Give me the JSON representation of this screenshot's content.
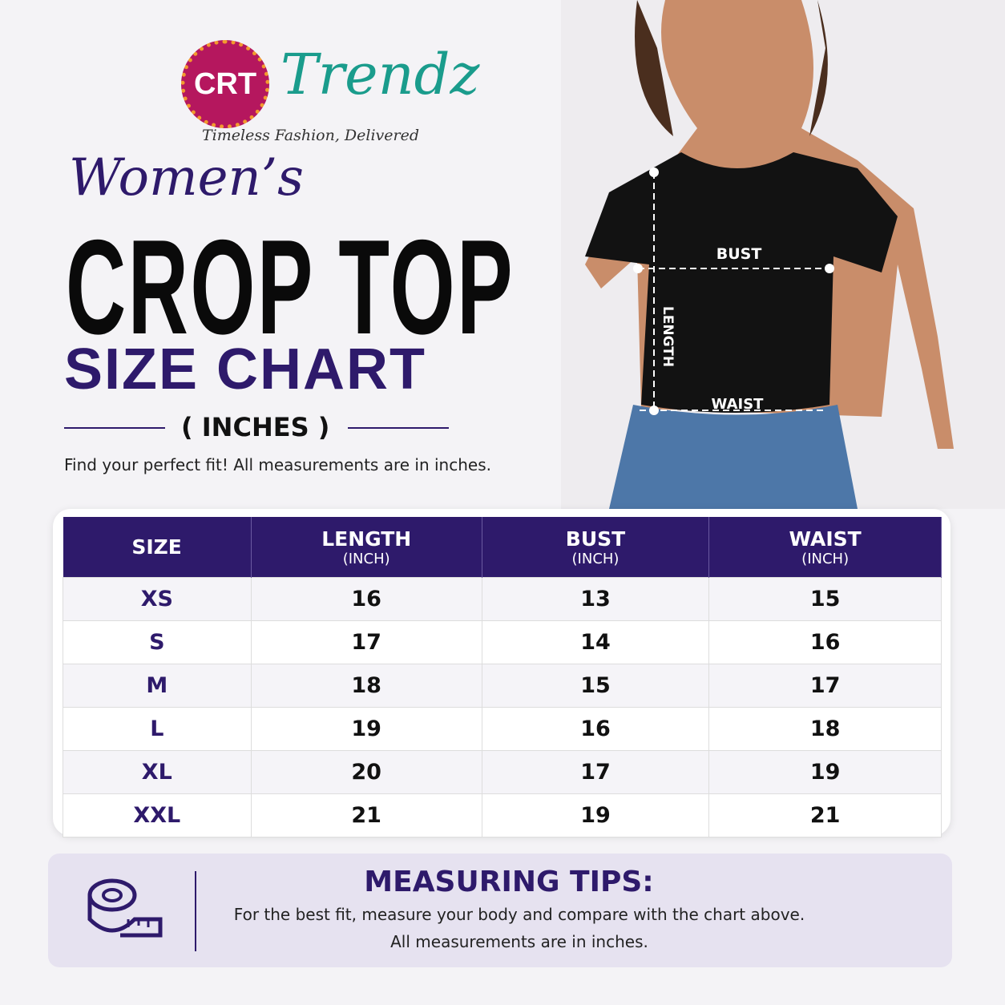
{
  "logo": {
    "badge": "CRT",
    "brand": "Trendz",
    "tagline": "Timeless Fashion, Delivered"
  },
  "heading": {
    "script": "Women’s",
    "title": "CROP TOP",
    "subtitle": "SIZE CHART",
    "unit": "( INCHES )",
    "note": "Find your perfect fit! All measurements are in inches."
  },
  "diagram": {
    "bust": "BUST",
    "length": "LENGTH",
    "waist": "WAIST"
  },
  "table": {
    "headers": [
      {
        "label": "SIZE"
      },
      {
        "label": "LENGTH",
        "unit": "(INCH)"
      },
      {
        "label": "BUST",
        "unit": "(INCH)"
      },
      {
        "label": "WAIST",
        "unit": "(INCH)"
      }
    ],
    "rows": [
      [
        "XS",
        16,
        13,
        15
      ],
      [
        "S",
        17,
        14,
        16
      ],
      [
        "M",
        18,
        15,
        17
      ],
      [
        "L",
        19,
        16,
        18
      ],
      [
        "XL",
        20,
        17,
        19
      ],
      [
        "XXL",
        21,
        19,
        21
      ]
    ]
  },
  "tips": {
    "title": "MEASURING TIPS:",
    "lines": [
      "For the best fit, measure your body and compare with the chart above.",
      "All measurements are in inches."
    ]
  }
}
